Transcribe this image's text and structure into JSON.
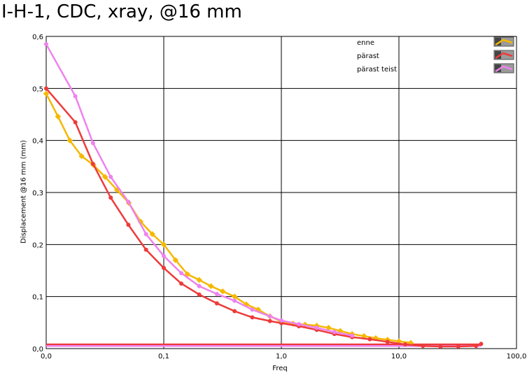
{
  "chart_data": {
    "type": "line",
    "title": "I-H-1, CDC, xray, @16 mm",
    "xlabel": "Freq",
    "ylabel": "Displacement @16 mm (mm)",
    "xscale": "log",
    "xlim": [
      0.01,
      100
    ],
    "ylim": [
      0,
      0.6
    ],
    "grid": true,
    "legend_position": "top-right",
    "xticks": [
      "0,0",
      "0,1",
      "1,0",
      "10,0",
      "100,0"
    ],
    "yticks": [
      "0,0",
      "0,1",
      "0,2",
      "0,3",
      "0,4",
      "0,5",
      "0,6"
    ],
    "series": [
      {
        "name": "enne",
        "color": "#f5b800",
        "x": [
          0.01,
          0.0126,
          0.0159,
          0.02,
          0.0252,
          0.0317,
          0.04,
          0.0504,
          0.0635,
          0.08,
          0.1,
          0.126,
          0.159,
          0.2,
          0.252,
          0.317,
          0.4,
          0.504,
          0.635,
          0.8,
          1.0,
          1.26,
          1.59,
          2.0,
          2.52,
          3.17,
          4.0,
          5.04,
          6.35,
          8.0,
          10.0,
          12.6
        ],
        "y": [
          0.49,
          0.446,
          0.4,
          0.37,
          0.353,
          0.33,
          0.305,
          0.28,
          0.244,
          0.22,
          0.2,
          0.17,
          0.143,
          0.132,
          0.12,
          0.11,
          0.1,
          0.085,
          0.075,
          0.062,
          0.052,
          0.048,
          0.046,
          0.044,
          0.04,
          0.034,
          0.028,
          0.024,
          0.02,
          0.017,
          0.014,
          0.011
        ]
      },
      {
        "name": "pärast",
        "color": "#ee3b3b",
        "x": [
          0.01,
          0.0177,
          0.025,
          0.0354,
          0.05,
          0.0707,
          0.1,
          0.141,
          0.2,
          0.283,
          0.4,
          0.566,
          0.8,
          1.0,
          1.41,
          2.0,
          2.83,
          4.0,
          5.66,
          8.0,
          11.3,
          16.0,
          22.6,
          32.0,
          45.3,
          50.0
        ],
        "y": [
          0.5,
          0.435,
          0.355,
          0.29,
          0.238,
          0.19,
          0.155,
          0.125,
          0.104,
          0.087,
          0.072,
          0.06,
          0.053,
          0.049,
          0.043,
          0.036,
          0.028,
          0.022,
          0.018,
          0.013,
          0.008,
          0.005,
          0.004,
          0.004,
          0.005,
          0.009
        ]
      },
      {
        "name": "pärast teist",
        "color": "#ee82ee",
        "x": [
          0.01,
          0.0177,
          0.025,
          0.0354,
          0.05,
          0.0707,
          0.1,
          0.141,
          0.2,
          0.283,
          0.4,
          0.566,
          0.8,
          1.0,
          1.41,
          2.0,
          2.83,
          4.0
        ],
        "y": [
          0.585,
          0.485,
          0.395,
          0.33,
          0.282,
          0.22,
          0.178,
          0.145,
          0.12,
          0.105,
          0.092,
          0.075,
          0.062,
          0.054,
          0.047,
          0.04,
          0.032,
          0.025
        ]
      }
    ],
    "baselines": [
      {
        "color": "#ee3b3b",
        "y": 0.008
      },
      {
        "color": "#ee82ee",
        "y": 0.005
      }
    ]
  }
}
